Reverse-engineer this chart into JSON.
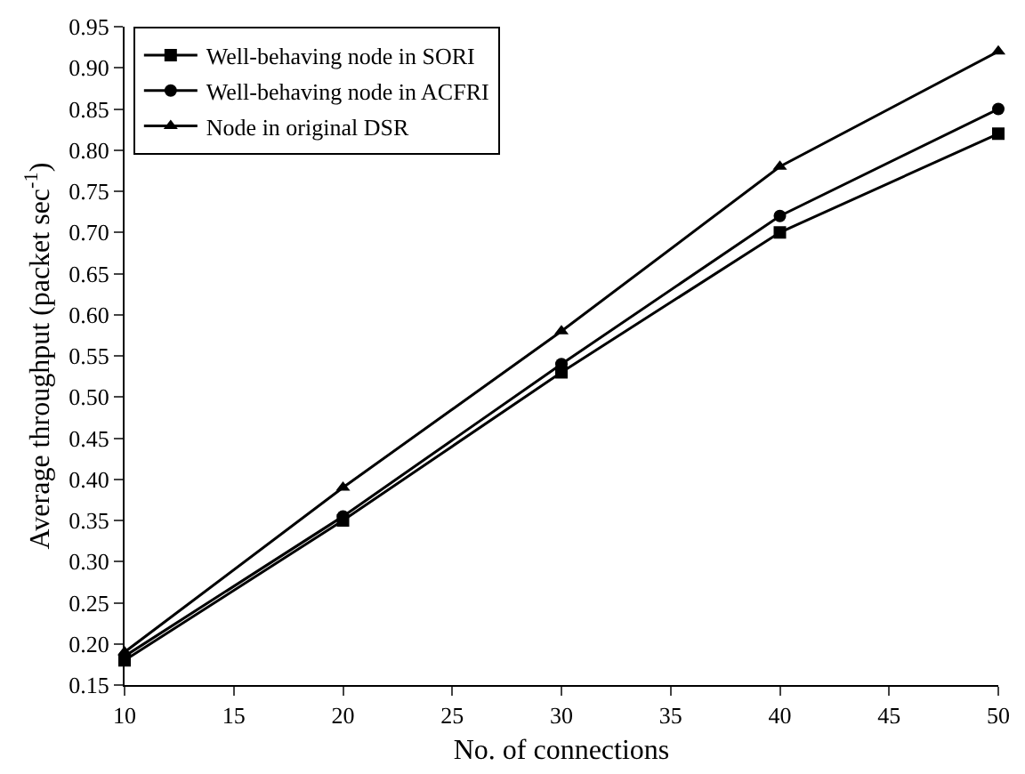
{
  "chart_data": {
    "type": "line",
    "xlabel": "No. of connections",
    "ylabel": "Average throughput (packet sec$^{-1}$)",
    "x": [
      10,
      20,
      30,
      40,
      50
    ],
    "series": [
      {
        "name": "Well-behaving node in SORI",
        "color": "#000000",
        "marker": "square",
        "values": [
          0.18,
          0.35,
          0.53,
          0.7,
          0.82
        ]
      },
      {
        "name": "Well-behaving node in ACFRI",
        "color": "#000000",
        "marker": "circle",
        "values": [
          0.185,
          0.355,
          0.54,
          0.72,
          0.85
        ]
      },
      {
        "name": "Node in original DSR",
        "color": "#000000",
        "marker": "triangle",
        "values": [
          0.19,
          0.39,
          0.58,
          0.78,
          0.92
        ]
      }
    ],
    "xlim": [
      10,
      50
    ],
    "xticks": [
      10,
      15,
      20,
      25,
      30,
      35,
      40,
      45,
      50
    ],
    "ylim": [
      0.15,
      0.95
    ],
    "yticks": [
      {
        "value": 0.15,
        "label": "0.15"
      },
      {
        "value": 0.2,
        "label": "0.20"
      },
      {
        "value": 0.25,
        "label": "0.25"
      },
      {
        "value": 0.3,
        "label": "0.30"
      },
      {
        "value": 0.35,
        "label": "0.35"
      },
      {
        "value": 0.4,
        "label": "0.40"
      },
      {
        "value": 0.45,
        "label": "0.45"
      },
      {
        "value": 0.5,
        "label": "0.50"
      },
      {
        "value": 0.55,
        "label": "0.55"
      },
      {
        "value": 0.6,
        "label": "0.60"
      },
      {
        "value": 0.65,
        "label": "0.65"
      },
      {
        "value": 0.7,
        "label": "0.70"
      },
      {
        "value": 0.75,
        "label": "0.75"
      },
      {
        "value": 0.8,
        "label": "0.80"
      },
      {
        "value": 0.85,
        "label": "0.85"
      },
      {
        "value": 0.9,
        "label": "0.90"
      },
      {
        "value": 0.95,
        "label": "0.95"
      }
    ],
    "grid": false,
    "legend": "top left",
    "line_style": "solid"
  }
}
